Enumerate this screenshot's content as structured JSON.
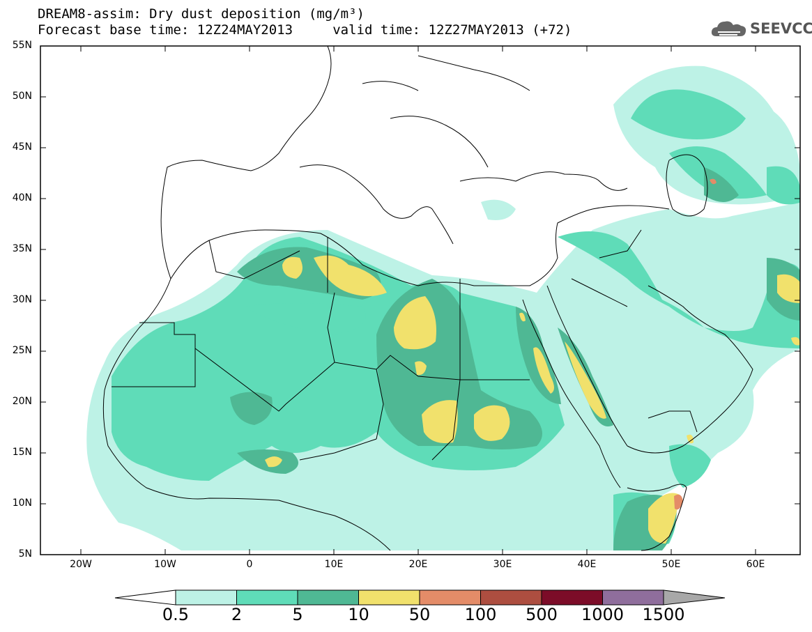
{
  "title": {
    "line1": "DREAM8-assim: Dry dust deposition (mg/m³)",
    "line2": "Forecast base time: 12Z24MAY2013     valid time: 12Z27MAY2013 (+72)"
  },
  "logo": {
    "text": "SEEVCCC",
    "icon": "cloud-logo-icon"
  },
  "axes": {
    "y_ticks": [
      "55N",
      "50N",
      "45N",
      "40N",
      "35N",
      "30N",
      "25N",
      "20N",
      "15N",
      "10N",
      "5N"
    ],
    "x_ticks": [
      "20W",
      "10W",
      "0",
      "10E",
      "20E",
      "30E",
      "40E",
      "50E",
      "60E"
    ],
    "lon_range": [
      -25,
      65
    ],
    "lat_range": [
      5,
      55
    ]
  },
  "colorbar": {
    "labels": [
      "0.5",
      "2",
      "5",
      "10",
      "50",
      "100",
      "500",
      "1000",
      "1500"
    ],
    "colors": [
      "#bdf2e6",
      "#5fdcb8",
      "#4fb894",
      "#f1e16c",
      "#e48c68",
      "#ad4e40",
      "#7c0c28",
      "#8f6e9c"
    ],
    "under_color": "#ffffff",
    "over_color": "#a8a8a8"
  },
  "colors": {
    "land_bg": "#ffffff",
    "border": "#000000"
  }
}
